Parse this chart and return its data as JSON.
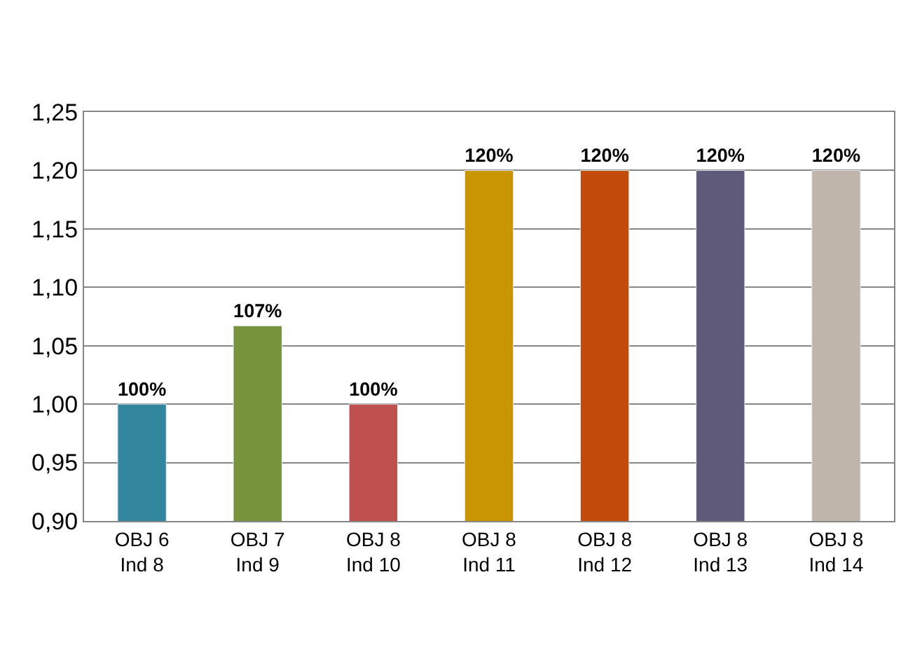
{
  "chart_data": {
    "type": "bar",
    "categories": [
      "OBJ 6\nInd 8",
      "OBJ 7\nInd 9",
      "OBJ 8\nInd 10",
      "OBJ 8\nInd 11",
      "OBJ 8\nInd 12",
      "OBJ 8\nInd 13",
      "OBJ 8\nInd 14"
    ],
    "values": [
      1.0,
      1.067,
      1.0,
      1.2,
      1.2,
      1.2,
      1.2
    ],
    "colors": [
      "#31859c",
      "#77933c",
      "#c0504d",
      "#c89600",
      "#c24a0a",
      "#5f5a7a",
      "#c0b5aa"
    ],
    "value_labels": [
      "100%",
      "107%",
      "100%",
      "120%",
      "120%",
      "120%",
      "120%"
    ],
    "ylim": [
      0.9,
      1.25
    ],
    "yticks": [
      {
        "value": 0.9,
        "label": "0,90"
      },
      {
        "value": 0.95,
        "label": "0,95"
      },
      {
        "value": 1.0,
        "label": "1,00"
      },
      {
        "value": 1.05,
        "label": "1,05"
      },
      {
        "value": 1.1,
        "label": "1,10"
      },
      {
        "value": 1.15,
        "label": "1,15"
      },
      {
        "value": 1.2,
        "label": "1,20"
      },
      {
        "value": 1.25,
        "label": "1,25"
      }
    ],
    "grid": "y"
  }
}
